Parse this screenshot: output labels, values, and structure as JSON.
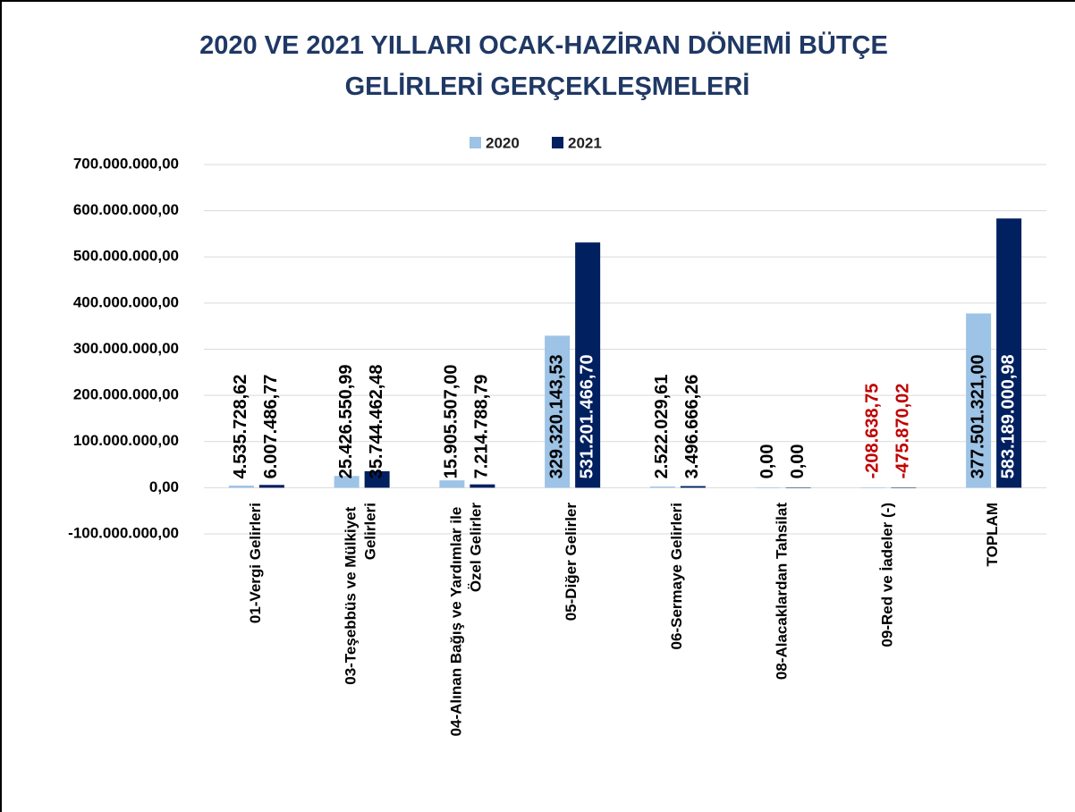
{
  "chart_data": {
    "type": "bar",
    "title": "2020 VE 2021 YILLARI OCAK-HAZİRAN DÖNEMİ BÜTÇE GELİRLERİ GERÇEKLEŞMELERİ",
    "categories": [
      "01-Vergi Gelirleri",
      "03-Teşebbüs ve Mülkiyet Gelirleri",
      "04-Alınan Bağış ve Yardımlar ile Özel Gelirler",
      "05-Diğer Gelirler",
      "06-Sermaye Gelirleri",
      "08-Alacaklardan Tahsilat",
      "09-Red ve İadeler (-)",
      "TOPLAM"
    ],
    "series": [
      {
        "name": "2020",
        "color": "#9dc3e6",
        "values": [
          4535728.62,
          25426550.99,
          15905507.0,
          329320143.53,
          2522029.61,
          0,
          -208638.75,
          377501321.0
        ],
        "value_labels": [
          "4.535.728,62",
          "25.426.550,99",
          "15.905.507,00",
          "329.320.143,53",
          "2.522.029,61",
          "0,00",
          "-208.638,75",
          "377.501.321,00"
        ]
      },
      {
        "name": "2021",
        "color": "#002060",
        "values": [
          6007486.77,
          35744462.48,
          7214788.79,
          531201466.7,
          3496666.26,
          0,
          -475870.02,
          583189000.98
        ],
        "value_labels": [
          "6.007.486,77",
          "35.744.462,48",
          "7.214.788,79",
          "531.201.466,70",
          "3.496.666,26",
          "0,00",
          "-475.870,02",
          "583.189.000,98"
        ]
      }
    ],
    "ylim": [
      -100000000,
      700000000
    ],
    "yticks": [
      {
        "value": -100000000,
        "label": "-100.000.000,00"
      },
      {
        "value": 0,
        "label": "0,00"
      },
      {
        "value": 100000000,
        "label": "100.000.000,00"
      },
      {
        "value": 200000000,
        "label": "200.000.000,00"
      },
      {
        "value": 300000000,
        "label": "300.000.000,00"
      },
      {
        "value": 400000000,
        "label": "400.000.000,00"
      },
      {
        "value": 500000000,
        "label": "500.000.000,00"
      },
      {
        "value": 600000000,
        "label": "600.000.000,00"
      },
      {
        "value": 700000000,
        "label": "700.000.000,00"
      }
    ],
    "grid": true,
    "legend": "top"
  }
}
